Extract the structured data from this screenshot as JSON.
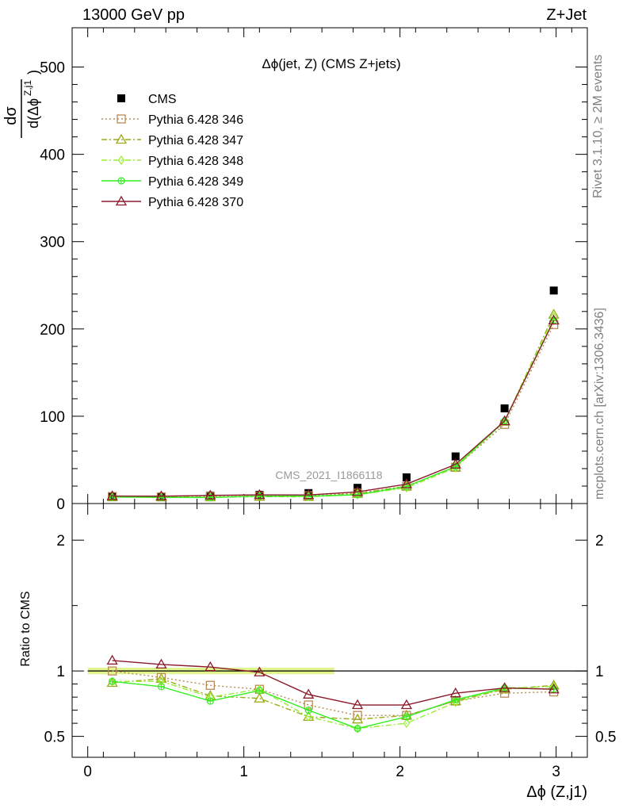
{
  "header": {
    "left": "13000 GeV pp",
    "right": "Z+Jet"
  },
  "side_labels": {
    "rivet": "Rivet 3.1.10, ≥ 2M events",
    "mcplots": "mcplots.cern.ch [arXiv:1306.3436]"
  },
  "chart_data": [
    {
      "type": "scatter",
      "title": "Δϕ(jet, Z) (CMS Z+jets)",
      "watermark": "CMS_2021_I1866118",
      "ylabel": "dσ / d(Δϕ^{Z,j1})",
      "ylabel_num": "dσ",
      "ylabel_den": "d(Δϕ",
      "ylabel_sup": "Z,j1",
      "ylabel_close": ")",
      "xlim": [
        -0.1,
        3.2
      ],
      "ylim": [
        0,
        545
      ],
      "yticks": [
        0,
        100,
        200,
        300,
        400,
        500
      ],
      "yticklabels": [
        "0",
        "100",
        "200",
        "300",
        "400",
        "500"
      ],
      "legend_position": "top-left",
      "x": [
        0.157,
        0.471,
        0.785,
        1.1,
        1.414,
        1.728,
        2.042,
        2.356,
        2.67,
        2.985
      ],
      "series": [
        {
          "name": "CMS",
          "color": "#000000",
          "style": "points",
          "marker": "square-filled",
          "values": [
            8,
            8,
            9,
            10,
            12,
            18,
            30,
            54,
            109,
            244
          ]
        },
        {
          "name": "Pythia 6.428 346",
          "color": "#b88a55",
          "style": "dotted",
          "marker": "square-open",
          "values": [
            8.0,
            7.6,
            8.0,
            8.6,
            8.9,
            11.9,
            19.8,
            41.5,
            90.6,
            204.9
          ]
        },
        {
          "name": "Pythia 6.428 347",
          "color": "#9aaa18",
          "style": "dashdot",
          "marker": "triangle-open",
          "values": [
            7.3,
            7.5,
            7.3,
            7.9,
            7.8,
            11.3,
            19.8,
            41.5,
            93.9,
            216.6
          ]
        },
        {
          "name": "Pythia 6.428 348",
          "color": "#99ee33",
          "style": "dashdot",
          "marker": "diamond-open",
          "values": [
            7.4,
            7.4,
            7.2,
            8.6,
            7.8,
            10.1,
            18.0,
            41.0,
            94.5,
            214.1
          ]
        },
        {
          "name": "Pythia 6.428 349",
          "color": "#33ee22",
          "style": "solid",
          "marker": "circle-cross",
          "values": [
            7.4,
            7.0,
            6.9,
            8.5,
            8.4,
            10.1,
            19.5,
            42.4,
            94.5,
            209.8
          ]
        },
        {
          "name": "Pythia 6.428 370",
          "color": "#8b1a2a",
          "style": "solid",
          "marker": "triangle-open",
          "values": [
            8.6,
            8.4,
            9.3,
            9.9,
            9.8,
            13.3,
            22.2,
            44.8,
            94.5,
            209.8
          ]
        }
      ]
    },
    {
      "type": "scatter",
      "title": "",
      "xlabel": "Δϕ (Z,j1)",
      "ylabel": "Ratio to CMS",
      "xlim": [
        -0.1,
        3.2
      ],
      "ylim": [
        0.34,
        2.28
      ],
      "xticks": [
        0,
        1,
        2,
        3
      ],
      "xticklabels": [
        "0",
        "1",
        "2",
        "3"
      ],
      "yticks": [
        0.5,
        1,
        2
      ],
      "yticklabels": [
        "0.5",
        "1",
        "2"
      ],
      "reference_line": 1,
      "band": {
        "color": "#ccee44",
        "low": 0.975,
        "high": 1.025,
        "xrange": [
          0,
          1.58
        ]
      },
      "x": [
        0.157,
        0.471,
        0.785,
        1.1,
        1.414,
        1.728,
        2.042,
        2.356,
        2.67,
        2.985
      ],
      "series": [
        {
          "name": "Pythia 6.428 346",
          "color": "#b88a55",
          "style": "dotted",
          "marker": "square-open",
          "values": [
            1.0,
            0.95,
            0.89,
            0.86,
            0.74,
            0.66,
            0.66,
            0.77,
            0.83,
            0.84
          ]
        },
        {
          "name": "Pythia 6.428 347",
          "color": "#9aaa18",
          "style": "dashdot",
          "marker": "triangle-open",
          "values": [
            0.91,
            0.94,
            0.81,
            0.79,
            0.65,
            0.63,
            0.66,
            0.77,
            0.86,
            0.89
          ]
        },
        {
          "name": "Pythia 6.428 348",
          "color": "#99ee33",
          "style": "dashdot",
          "marker": "diamond-open",
          "values": [
            0.92,
            0.92,
            0.8,
            0.86,
            0.65,
            0.56,
            0.6,
            0.76,
            0.87,
            0.88
          ]
        },
        {
          "name": "Pythia 6.428 349",
          "color": "#33ee22",
          "style": "solid",
          "marker": "circle-cross",
          "values": [
            0.92,
            0.88,
            0.77,
            0.85,
            0.7,
            0.56,
            0.65,
            0.78,
            0.87,
            0.86
          ]
        },
        {
          "name": "Pythia 6.428 370",
          "color": "#8b1a2a",
          "style": "solid",
          "marker": "triangle-open",
          "values": [
            1.08,
            1.05,
            1.03,
            0.99,
            0.82,
            0.74,
            0.74,
            0.83,
            0.87,
            0.86
          ]
        }
      ]
    }
  ]
}
